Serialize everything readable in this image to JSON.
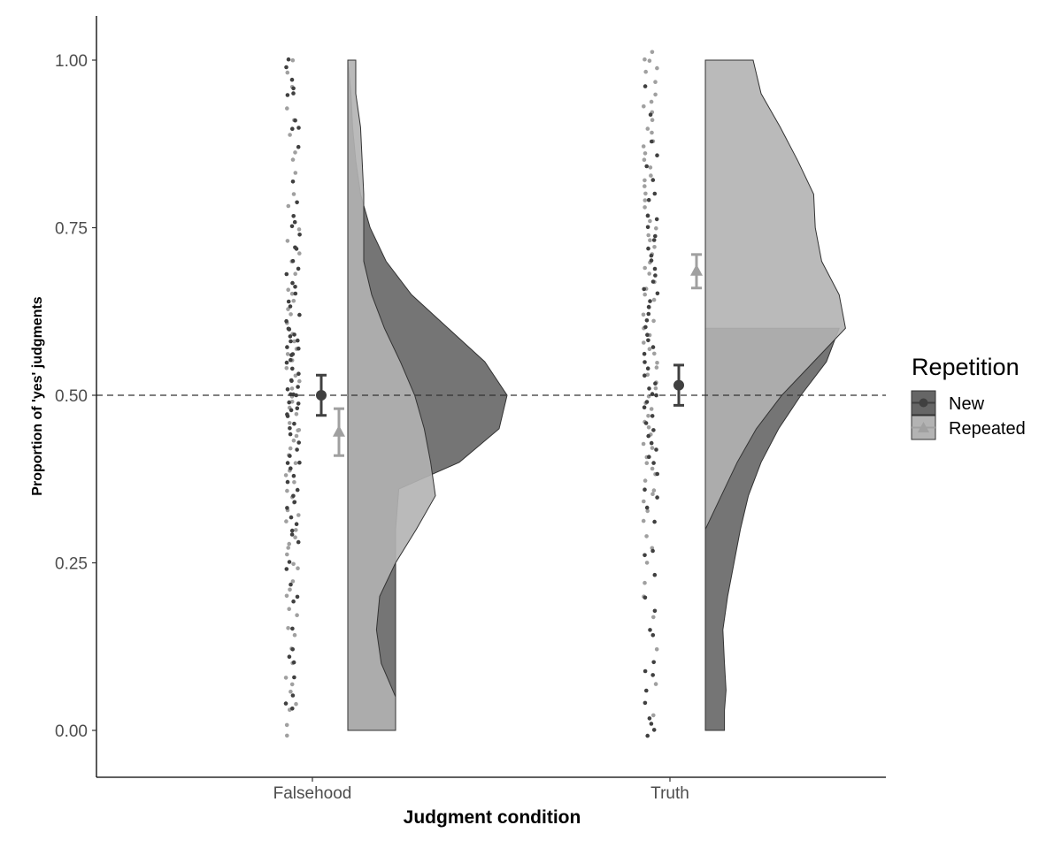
{
  "chart_data": {
    "type": "raincloud",
    "title": "",
    "xlabel": "Judgment condition",
    "ylabel": "Proportion of 'yes' judgments",
    "categories": [
      "Falsehood",
      "Truth"
    ],
    "ylim": [
      -0.06,
      1.06
    ],
    "yticks": [
      0.0,
      0.25,
      0.5,
      0.75,
      1.0
    ],
    "ytick_labels": [
      "0.00",
      "0.25",
      "0.50",
      "0.75",
      "1.00"
    ],
    "reference_line": 0.5,
    "legend": {
      "title": "Repetition",
      "position": "right",
      "entries": [
        {
          "label": "New",
          "color": "#595959",
          "shape": "circle"
        },
        {
          "label": "Repeated",
          "color": "#a6a6a6",
          "shape": "triangle"
        }
      ]
    },
    "colors": {
      "new_density": "#666666",
      "repeated_density": "#b3b3b3",
      "new_point": "#404040",
      "repeated_point": "#a0a0a0",
      "new_summary": "#404040",
      "repeated_summary": "#a0a0a0",
      "axis": "#000000",
      "tick": "#4d4d4d"
    },
    "series": [
      {
        "name": "New",
        "summary": [
          {
            "category": "Falsehood",
            "mean": 0.5,
            "ci": [
              0.47,
              0.53
            ]
          },
          {
            "category": "Truth",
            "mean": 0.515,
            "ci": [
              0.485,
              0.545
            ]
          }
        ],
        "density": [
          {
            "category": "Falsehood",
            "profile": [
              [
                0.0,
                0.3
              ],
              [
                0.05,
                0.3
              ],
              [
                0.1,
                0.3
              ],
              [
                0.2,
                0.3
              ],
              [
                0.3,
                0.3
              ],
              [
                0.36,
                0.32
              ],
              [
                0.4,
                0.7
              ],
              [
                0.45,
                0.95
              ],
              [
                0.5,
                1.0
              ],
              [
                0.55,
                0.86
              ],
              [
                0.6,
                0.63
              ],
              [
                0.65,
                0.4
              ],
              [
                0.7,
                0.24
              ],
              [
                0.75,
                0.14
              ],
              [
                0.8,
                0.08
              ],
              [
                0.85,
                0.05
              ],
              [
                0.9,
                0.03
              ],
              [
                0.95,
                0.02
              ],
              [
                1.0,
                0.0
              ]
            ]
          },
          {
            "category": "Truth",
            "profile": [
              [
                0.0,
                0.12
              ],
              [
                0.03,
                0.12
              ],
              [
                0.06,
                0.13
              ],
              [
                0.1,
                0.12
              ],
              [
                0.15,
                0.11
              ],
              [
                0.2,
                0.14
              ],
              [
                0.25,
                0.18
              ],
              [
                0.3,
                0.22
              ],
              [
                0.35,
                0.27
              ],
              [
                0.4,
                0.35
              ],
              [
                0.45,
                0.46
              ],
              [
                0.5,
                0.6
              ],
              [
                0.55,
                0.76
              ],
              [
                0.6,
                0.84
              ],
              [
                0.6,
                0.0
              ]
            ]
          }
        ]
      },
      {
        "name": "Repeated",
        "summary": [
          {
            "category": "Falsehood",
            "mean": 0.445,
            "ci": [
              0.41,
              0.48
            ]
          },
          {
            "category": "Truth",
            "mean": 0.685,
            "ci": [
              0.66,
              0.71
            ]
          }
        ],
        "density": [
          {
            "category": "Falsehood",
            "profile": [
              [
                0.0,
                0.3
              ],
              [
                0.05,
                0.3
              ],
              [
                0.1,
                0.21
              ],
              [
                0.15,
                0.18
              ],
              [
                0.2,
                0.2
              ],
              [
                0.25,
                0.3
              ],
              [
                0.3,
                0.43
              ],
              [
                0.35,
                0.55
              ],
              [
                0.4,
                0.52
              ],
              [
                0.45,
                0.48
              ],
              [
                0.5,
                0.42
              ],
              [
                0.55,
                0.33
              ],
              [
                0.6,
                0.23
              ],
              [
                0.65,
                0.15
              ],
              [
                0.7,
                0.1
              ],
              [
                0.75,
                0.1
              ],
              [
                0.8,
                0.1
              ],
              [
                0.85,
                0.09
              ],
              [
                0.9,
                0.08
              ],
              [
                0.95,
                0.05
              ],
              [
                1.0,
                0.05
              ]
            ]
          },
          {
            "category": "Truth",
            "profile": [
              [
                0.0,
                0.0
              ],
              [
                0.3,
                0.0
              ],
              [
                0.35,
                0.1
              ],
              [
                0.4,
                0.2
              ],
              [
                0.45,
                0.32
              ],
              [
                0.5,
                0.48
              ],
              [
                0.55,
                0.68
              ],
              [
                0.6,
                0.88
              ],
              [
                0.65,
                0.84
              ],
              [
                0.7,
                0.73
              ],
              [
                0.75,
                0.69
              ],
              [
                0.8,
                0.68
              ],
              [
                0.85,
                0.58
              ],
              [
                0.9,
                0.47
              ],
              [
                0.95,
                0.35
              ],
              [
                1.0,
                0.3
              ]
            ]
          }
        ]
      }
    ],
    "points": {
      "Falsehood": {
        "New": [
          1.0,
          0.99,
          0.97,
          0.96,
          0.95,
          0.95,
          0.91,
          0.9,
          0.9,
          0.87,
          0.82,
          0.79,
          0.77,
          0.76,
          0.75,
          0.74,
          0.72,
          0.72,
          0.7,
          0.69,
          0.68,
          0.67,
          0.66,
          0.65,
          0.64,
          0.63,
          0.62,
          0.61,
          0.6,
          0.6,
          0.59,
          0.59,
          0.58,
          0.58,
          0.57,
          0.57,
          0.56,
          0.56,
          0.55,
          0.55,
          0.54,
          0.53,
          0.52,
          0.52,
          0.51,
          0.51,
          0.5,
          0.5,
          0.5,
          0.49,
          0.49,
          0.48,
          0.48,
          0.47,
          0.47,
          0.46,
          0.45,
          0.44,
          0.43,
          0.42,
          0.41,
          0.4,
          0.4,
          0.39,
          0.38,
          0.37,
          0.36,
          0.35,
          0.34,
          0.33,
          0.32,
          0.31,
          0.3,
          0.29,
          0.28,
          0.25,
          0.24,
          0.22,
          0.2,
          0.19,
          0.15,
          0.12,
          0.11,
          0.1,
          0.08,
          0.05,
          0.04,
          0.03
        ],
        "Repeated": [
          1.0,
          0.98,
          0.96,
          0.93,
          0.91,
          0.89,
          0.86,
          0.85,
          0.83,
          0.8,
          0.78,
          0.75,
          0.73,
          0.71,
          0.7,
          0.68,
          0.66,
          0.65,
          0.64,
          0.63,
          0.62,
          0.61,
          0.6,
          0.59,
          0.58,
          0.57,
          0.56,
          0.55,
          0.54,
          0.53,
          0.52,
          0.51,
          0.5,
          0.49,
          0.48,
          0.47,
          0.46,
          0.45,
          0.45,
          0.44,
          0.43,
          0.42,
          0.41,
          0.4,
          0.39,
          0.38,
          0.37,
          0.36,
          0.35,
          0.34,
          0.33,
          0.32,
          0.31,
          0.3,
          0.29,
          0.28,
          0.27,
          0.26,
          0.25,
          0.24,
          0.22,
          0.21,
          0.2,
          0.18,
          0.17,
          0.15,
          0.14,
          0.12,
          0.1,
          0.08,
          0.07,
          0.06,
          0.04,
          0.03,
          0.01,
          -0.01
        ]
      },
      "Truth": {
        "New": [
          0.96,
          0.92,
          0.88,
          0.86,
          0.84,
          0.82,
          0.8,
          0.79,
          0.77,
          0.76,
          0.75,
          0.74,
          0.73,
          0.72,
          0.71,
          0.7,
          0.69,
          0.68,
          0.67,
          0.66,
          0.65,
          0.64,
          0.63,
          0.62,
          0.61,
          0.6,
          0.59,
          0.58,
          0.57,
          0.56,
          0.55,
          0.54,
          0.53,
          0.52,
          0.51,
          0.5,
          0.5,
          0.49,
          0.48,
          0.47,
          0.46,
          0.45,
          0.44,
          0.43,
          0.42,
          0.41,
          0.4,
          0.38,
          0.36,
          0.35,
          0.33,
          0.31,
          0.27,
          0.26,
          0.23,
          0.2,
          0.18,
          0.15,
          0.14,
          0.1,
          0.09,
          0.08,
          0.06,
          0.04,
          0.02,
          0.01,
          0.0,
          -0.01
        ],
        "Repeated": [
          1.01,
          1.0,
          1.0,
          0.99,
          0.98,
          0.97,
          0.95,
          0.94,
          0.93,
          0.92,
          0.91,
          0.9,
          0.89,
          0.88,
          0.87,
          0.86,
          0.85,
          0.84,
          0.83,
          0.82,
          0.81,
          0.8,
          0.79,
          0.78,
          0.77,
          0.76,
          0.75,
          0.74,
          0.73,
          0.72,
          0.71,
          0.7,
          0.69,
          0.68,
          0.67,
          0.66,
          0.65,
          0.64,
          0.63,
          0.62,
          0.61,
          0.6,
          0.59,
          0.58,
          0.57,
          0.56,
          0.55,
          0.54,
          0.53,
          0.52,
          0.51,
          0.5,
          0.49,
          0.48,
          0.47,
          0.46,
          0.45,
          0.44,
          0.43,
          0.42,
          0.41,
          0.4,
          0.39,
          0.38,
          0.37,
          0.36,
          0.35,
          0.34,
          0.33,
          0.31,
          0.29,
          0.27,
          0.25,
          0.22,
          0.2,
          0.17,
          0.12,
          0.07,
          0.02
        ]
      }
    }
  }
}
